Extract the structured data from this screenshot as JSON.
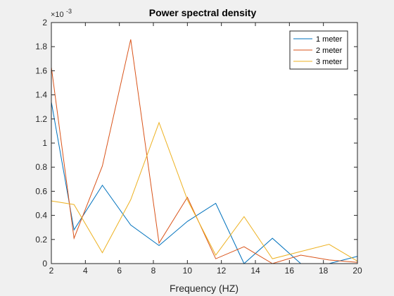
{
  "chart_data": {
    "type": "line",
    "title": "Power spectral density",
    "xlabel": "Frequency (HZ)",
    "ylabel": "",
    "xlim": [
      2,
      20
    ],
    "ylim": [
      0,
      2
    ],
    "y_exponent_label": "×10",
    "y_exponent": "-3",
    "x_ticks": [
      2,
      4,
      6,
      8,
      10,
      12,
      14,
      16,
      18,
      20
    ],
    "y_ticks": [
      0,
      0.2,
      0.4,
      0.6,
      0.8,
      1,
      1.2,
      1.4,
      1.6,
      1.8,
      2
    ],
    "grid": false,
    "legend_position": "top-right",
    "x": [
      2.0,
      3.333,
      5.0,
      6.667,
      8.333,
      10.0,
      11.667,
      13.333,
      15.0,
      16.667,
      18.333,
      20.0
    ],
    "series": [
      {
        "name": "1 meter",
        "color": "#0072BD",
        "values": [
          1.34,
          0.28,
          0.65,
          0.32,
          0.15,
          0.35,
          0.5,
          0.0,
          0.21,
          0.0,
          0.0,
          0.06
        ]
      },
      {
        "name": "2 meter",
        "color": "#D95319",
        "values": [
          1.63,
          0.21,
          0.81,
          1.86,
          0.17,
          0.55,
          0.04,
          0.14,
          0.0,
          0.07,
          0.03,
          0.01
        ]
      },
      {
        "name": "3 meter",
        "color": "#EDB120",
        "values": [
          0.52,
          0.49,
          0.09,
          0.53,
          1.17,
          0.53,
          0.07,
          0.39,
          0.04,
          0.1,
          0.16,
          0.02
        ]
      }
    ]
  }
}
